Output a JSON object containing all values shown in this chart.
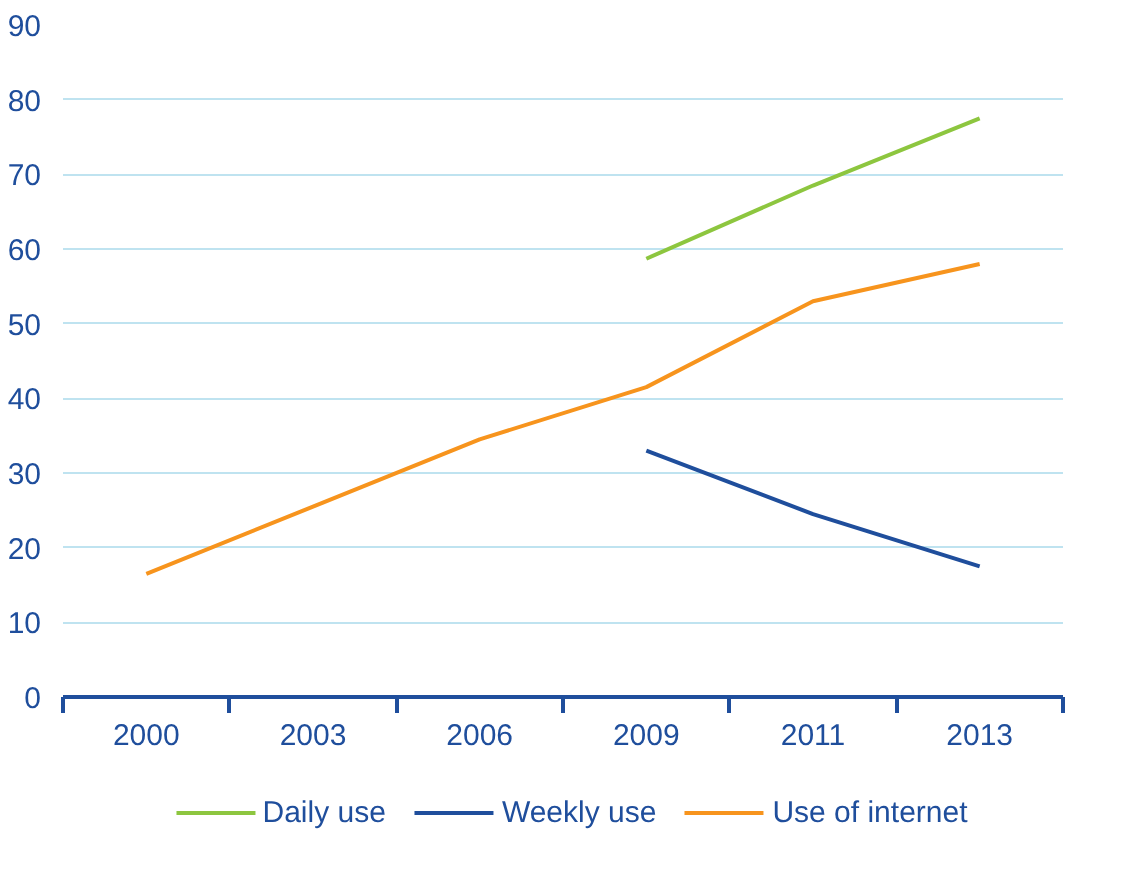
{
  "chart_data": {
    "type": "line",
    "categories": [
      "2000",
      "2003",
      "2006",
      "2009",
      "2011",
      "2013"
    ],
    "series": [
      {
        "name": "Daily use",
        "color": "#8dc63f",
        "values": [
          null,
          null,
          null,
          58.7,
          68.5,
          77.5
        ]
      },
      {
        "name": "Weekly use",
        "color": "#1f4e9c",
        "values": [
          null,
          null,
          null,
          33,
          24.5,
          17.5
        ]
      },
      {
        "name": "Use of internet",
        "color": "#f7941d",
        "values": [
          16.5,
          25.5,
          34.5,
          41.5,
          53,
          58
        ]
      }
    ],
    "ylim": [
      0,
      90
    ],
    "yticks": [
      0,
      10,
      20,
      30,
      40,
      50,
      60,
      70,
      80,
      90
    ],
    "grid": "y",
    "legend": "bottom",
    "marker": "none",
    "line_style": "solid"
  }
}
